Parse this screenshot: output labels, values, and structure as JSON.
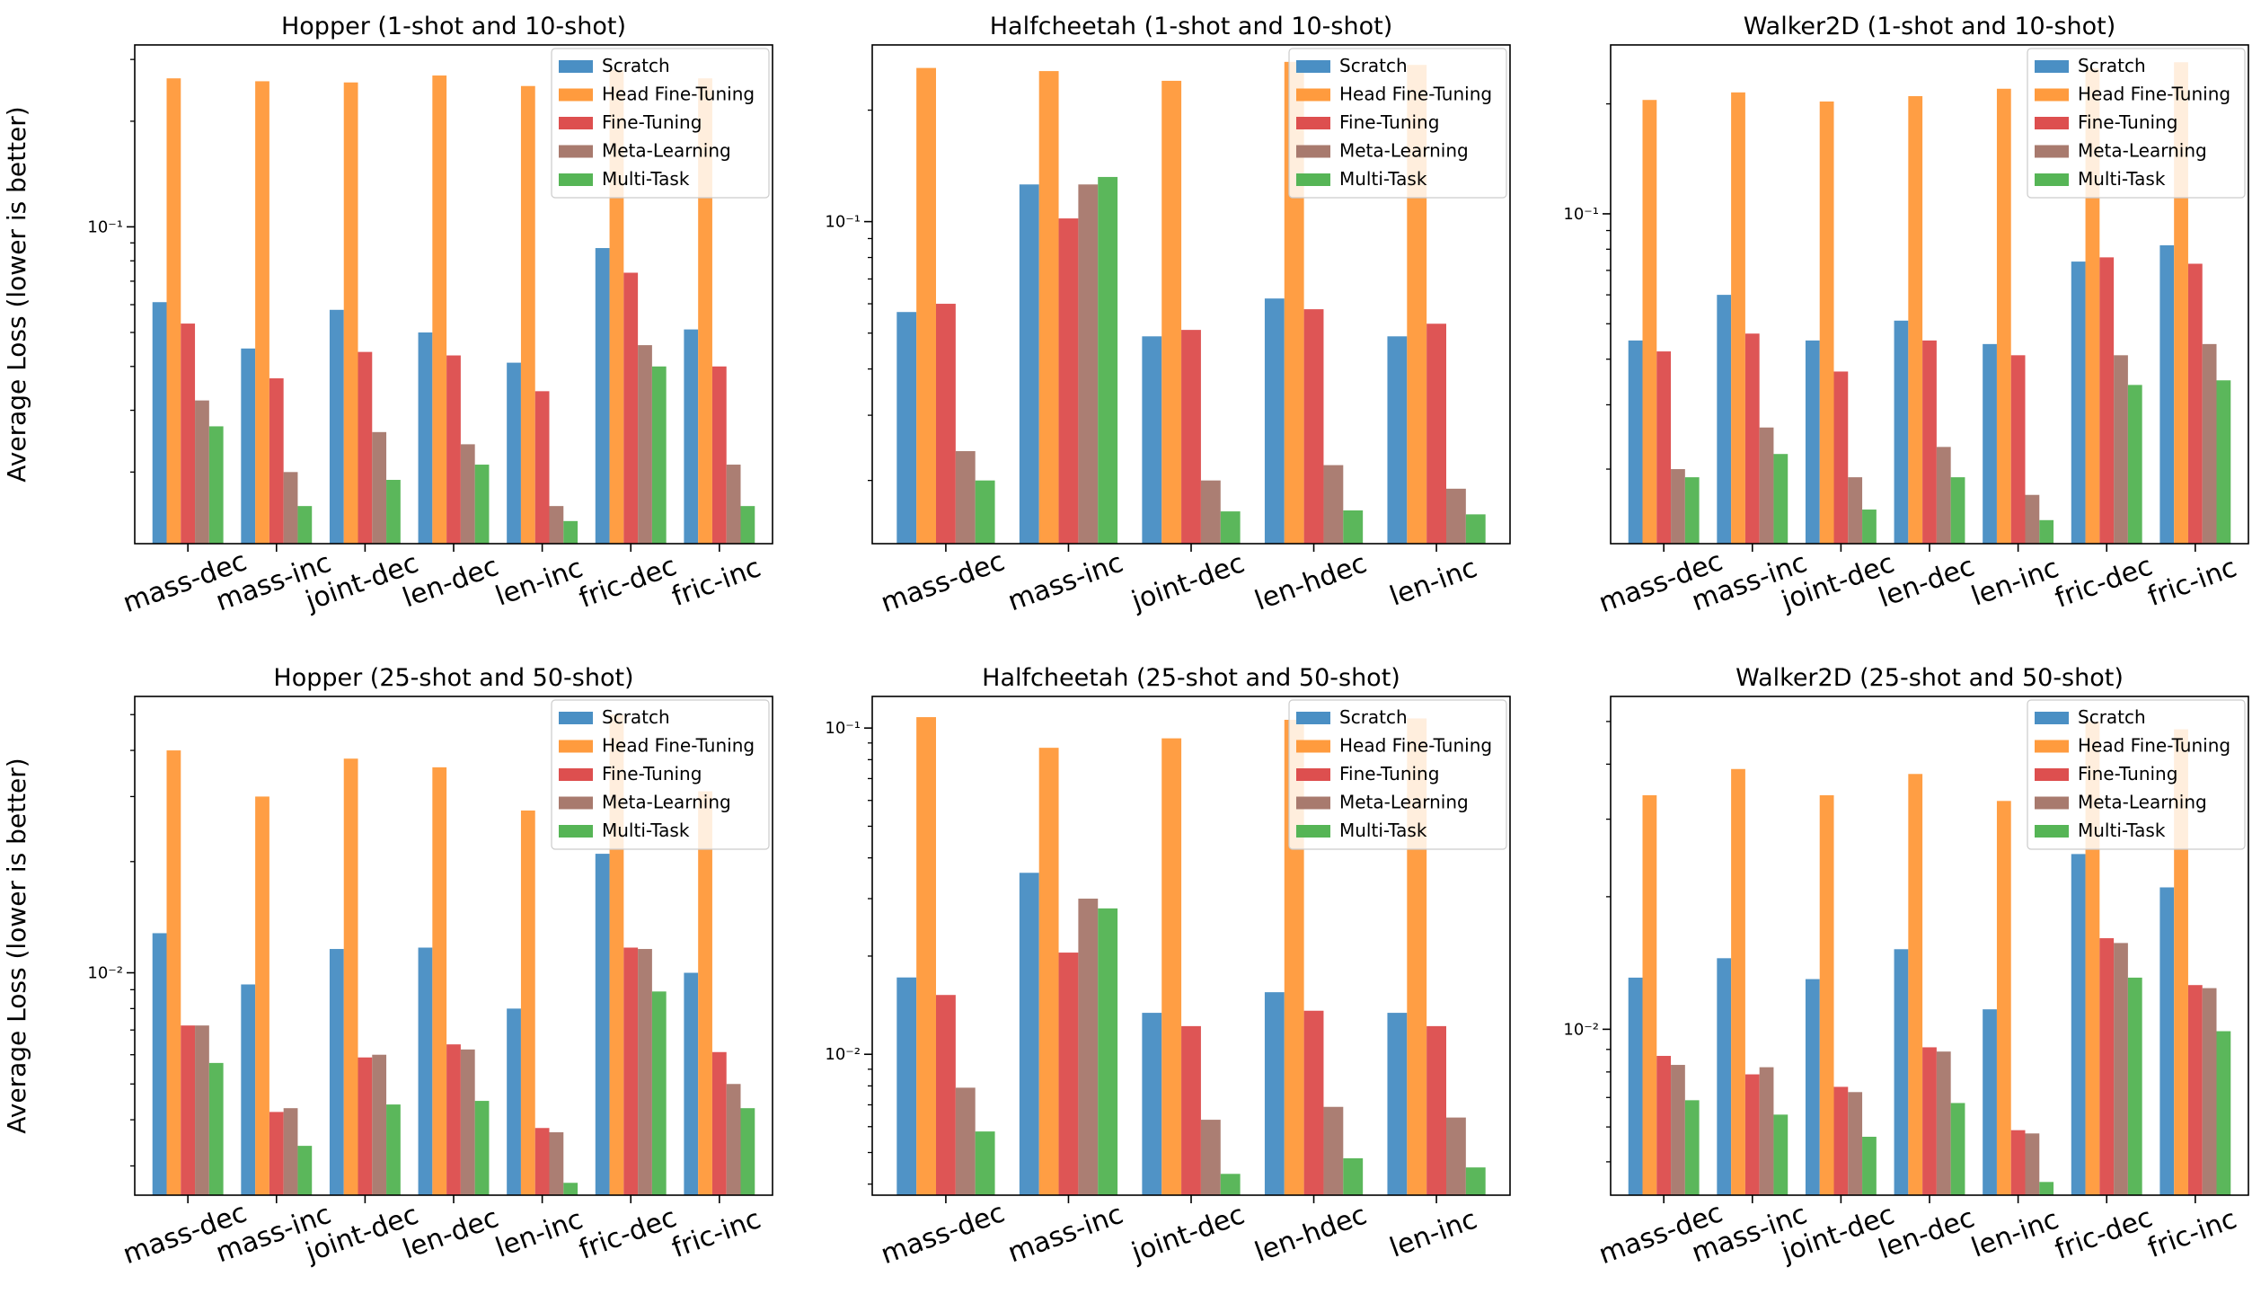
{
  "figure": {
    "series_names": [
      "Scratch",
      "Head Fine-Tuning",
      "Fine-Tuning",
      "Meta-Learning",
      "Multi-Task"
    ],
    "series_colors": [
      "#4a8fc4",
      "#ff9b3e",
      "#dd4f4f",
      "#a87a6e",
      "#56b556"
    ],
    "ylabel": "Average Loss (lower is better)"
  },
  "chart_data": [
    {
      "type": "bar",
      "yscale": "log",
      "title": "Hopper (1-shot and 10-shot)",
      "ylabel": "Average Loss (lower is better)",
      "ylim": [
        0.0125,
        0.33
      ],
      "ytick_labels": [
        "10⁻¹"
      ],
      "ytick_values": [
        0.1
      ],
      "legend": "upper right",
      "categories": [
        "mass-dec",
        "mass-inc",
        "joint-dec",
        "len-dec",
        "len-inc",
        "fric-dec",
        "fric-inc"
      ],
      "series": [
        {
          "name": "Scratch",
          "values": [
            0.061,
            0.045,
            0.058,
            0.05,
            0.041,
            0.087,
            0.051
          ]
        },
        {
          "name": "Head Fine-Tuning",
          "values": [
            0.265,
            0.26,
            0.258,
            0.27,
            0.252,
            0.28,
            0.265
          ]
        },
        {
          "name": "Fine-Tuning",
          "values": [
            0.053,
            0.037,
            0.044,
            0.043,
            0.034,
            0.074,
            0.04
          ]
        },
        {
          "name": "Meta-Learning",
          "values": [
            0.032,
            0.02,
            0.026,
            0.024,
            0.016,
            0.046,
            0.021
          ]
        },
        {
          "name": "Multi-Task",
          "values": [
            0.027,
            0.016,
            0.019,
            0.021,
            0.0145,
            0.04,
            0.016
          ]
        }
      ]
    },
    {
      "type": "bar",
      "yscale": "log",
      "title": "Halfcheetah (1-shot and 10-shot)",
      "ylabel": "",
      "ylim": [
        0.0135,
        0.3
      ],
      "ytick_labels": [
        "10⁻¹"
      ],
      "ytick_values": [
        0.1
      ],
      "legend": "upper right",
      "categories": [
        "mass-dec",
        "mass-inc",
        "joint-dec",
        "len-hdec",
        "len-inc"
      ],
      "series": [
        {
          "name": "Scratch",
          "values": [
            0.057,
            0.126,
            0.049,
            0.062,
            0.049
          ]
        },
        {
          "name": "Head Fine-Tuning",
          "values": [
            0.26,
            0.255,
            0.24,
            0.27,
            0.265
          ]
        },
        {
          "name": "Fine-Tuning",
          "values": [
            0.06,
            0.102,
            0.051,
            0.058,
            0.053
          ]
        },
        {
          "name": "Meta-Learning",
          "values": [
            0.024,
            0.126,
            0.02,
            0.022,
            0.019
          ]
        },
        {
          "name": "Multi-Task",
          "values": [
            0.02,
            0.132,
            0.0165,
            0.0166,
            0.0162
          ]
        }
      ]
    },
    {
      "type": "bar",
      "yscale": "log",
      "title": "Walker2D (1-shot and 10-shot)",
      "ylabel": "",
      "ylim": [
        0.0125,
        0.29
      ],
      "ytick_labels": [
        "10⁻¹"
      ],
      "ytick_values": [
        0.1
      ],
      "legend": "upper right",
      "categories": [
        "mass-dec",
        "mass-inc",
        "joint-dec",
        "len-dec",
        "len-inc",
        "fric-dec",
        "fric-inc"
      ],
      "series": [
        {
          "name": "Scratch",
          "values": [
            0.045,
            0.06,
            0.045,
            0.051,
            0.044,
            0.074,
            0.082
          ]
        },
        {
          "name": "Head Fine-Tuning",
          "values": [
            0.205,
            0.215,
            0.203,
            0.21,
            0.22,
            0.25,
            0.26
          ]
        },
        {
          "name": "Fine-Tuning",
          "values": [
            0.042,
            0.047,
            0.037,
            0.045,
            0.041,
            0.076,
            0.073
          ]
        },
        {
          "name": "Meta-Learning",
          "values": [
            0.02,
            0.026,
            0.019,
            0.023,
            0.017,
            0.041,
            0.044
          ]
        },
        {
          "name": "Multi-Task",
          "values": [
            0.019,
            0.022,
            0.0155,
            0.019,
            0.0145,
            0.034,
            0.035
          ]
        }
      ]
    },
    {
      "type": "bar",
      "yscale": "log",
      "title": "Hopper (25-shot and 50-shot)",
      "ylabel": "Average Loss (lower is better)",
      "ylim": [
        0.0025,
        0.056
      ],
      "ytick_labels": [
        "10⁻²"
      ],
      "ytick_values": [
        0.01
      ],
      "legend": "upper right",
      "categories": [
        "mass-dec",
        "mass-inc",
        "joint-dec",
        "len-dec",
        "len-inc",
        "fric-dec",
        "fric-inc"
      ],
      "series": [
        {
          "name": "Scratch",
          "values": [
            0.0128,
            0.0093,
            0.0116,
            0.0117,
            0.008,
            0.021,
            0.01
          ]
        },
        {
          "name": "Head Fine-Tuning",
          "values": [
            0.04,
            0.03,
            0.038,
            0.036,
            0.0275,
            0.05,
            0.031
          ]
        },
        {
          "name": "Fine-Tuning",
          "values": [
            0.0072,
            0.0042,
            0.0059,
            0.0064,
            0.0038,
            0.0117,
            0.0061
          ]
        },
        {
          "name": "Meta-Learning",
          "values": [
            0.0072,
            0.0043,
            0.006,
            0.0062,
            0.0037,
            0.0116,
            0.005
          ]
        },
        {
          "name": "Multi-Task",
          "values": [
            0.0057,
            0.0034,
            0.0044,
            0.0045,
            0.0027,
            0.0089,
            0.0043
          ]
        }
      ]
    },
    {
      "type": "bar",
      "yscale": "log",
      "title": "Halfcheetah (25-shot and 50-shot)",
      "ylabel": "",
      "ylim": [
        0.0037,
        0.125
      ],
      "ytick_labels": [
        "10⁻²",
        "10⁻¹"
      ],
      "ytick_values": [
        0.01,
        0.1
      ],
      "legend": "upper right",
      "categories": [
        "mass-dec",
        "mass-inc",
        "joint-dec",
        "len-hdec",
        "len-inc"
      ],
      "series": [
        {
          "name": "Scratch",
          "values": [
            0.0172,
            0.036,
            0.0134,
            0.0155,
            0.0134
          ]
        },
        {
          "name": "Head Fine-Tuning",
          "values": [
            0.108,
            0.087,
            0.093,
            0.106,
            0.107
          ]
        },
        {
          "name": "Fine-Tuning",
          "values": [
            0.0152,
            0.0205,
            0.0122,
            0.0136,
            0.0122
          ]
        },
        {
          "name": "Meta-Learning",
          "values": [
            0.0079,
            0.03,
            0.0063,
            0.0069,
            0.0064
          ]
        },
        {
          "name": "Multi-Task",
          "values": [
            0.0058,
            0.028,
            0.0043,
            0.0048,
            0.0045
          ]
        }
      ]
    },
    {
      "type": "bar",
      "yscale": "log",
      "title": "Walker2D (25-shot and 50-shot)",
      "ylabel": "",
      "ylim": [
        0.0042,
        0.057
      ],
      "ytick_labels": [
        "10⁻²"
      ],
      "ytick_values": [
        0.01
      ],
      "legend": "upper right",
      "categories": [
        "mass-dec",
        "mass-inc",
        "joint-dec",
        "len-dec",
        "len-inc",
        "fric-dec",
        "fric-inc"
      ],
      "series": [
        {
          "name": "Scratch",
          "values": [
            0.0131,
            0.0145,
            0.013,
            0.0152,
            0.0111,
            0.025,
            0.021
          ]
        },
        {
          "name": "Head Fine-Tuning",
          "values": [
            0.034,
            0.039,
            0.034,
            0.038,
            0.033,
            0.05,
            0.048
          ]
        },
        {
          "name": "Fine-Tuning",
          "values": [
            0.0087,
            0.0079,
            0.0074,
            0.0091,
            0.0059,
            0.0161,
            0.0126
          ]
        },
        {
          "name": "Meta-Learning",
          "values": [
            0.0083,
            0.0082,
            0.0072,
            0.0089,
            0.0058,
            0.0157,
            0.0124
          ]
        },
        {
          "name": "Multi-Task",
          "values": [
            0.0069,
            0.0064,
            0.0057,
            0.0068,
            0.0045,
            0.0131,
            0.0099
          ]
        }
      ]
    }
  ]
}
